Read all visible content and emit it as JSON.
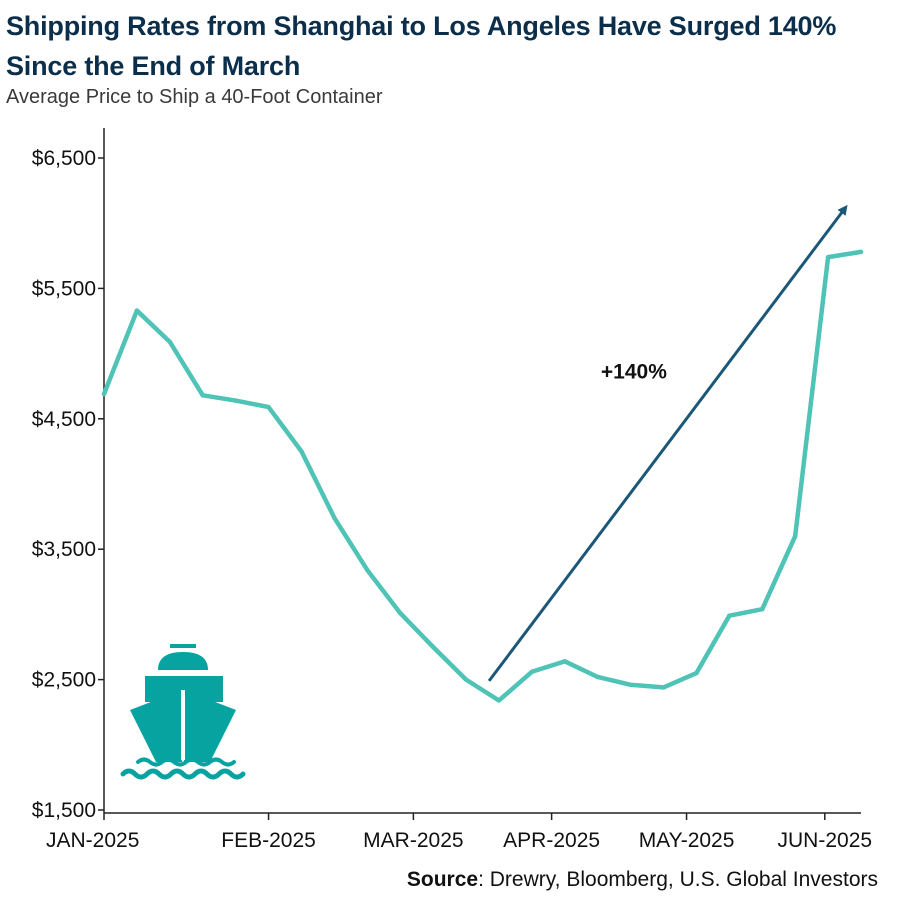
{
  "chart_data": {
    "type": "line",
    "title": "Shipping Rates from Shanghai to Los Angeles Have Surged 140% Since the End of March",
    "subtitle": "Average Price to Ship a 40-Foot Container",
    "xlabel": "",
    "ylabel": "",
    "ylim": [
      1500,
      6500
    ],
    "y_ticks": [
      1500,
      2500,
      3500,
      4500,
      5500,
      6500
    ],
    "y_tick_labels": [
      "$1,500",
      "$2,500",
      "$3,500",
      "$4,500",
      "$5,500",
      "$6,500"
    ],
    "x_range": [
      0,
      23
    ],
    "x_ticks": [
      0,
      5,
      9.4,
      13.6,
      17.7,
      21.9
    ],
    "x_tick_labels": [
      "JAN-2025",
      "FEB-2025",
      "MAR-2025",
      "APR-2025",
      "MAY-2025",
      "JUN-2025"
    ],
    "grid": false,
    "legend": "none",
    "series": [
      {
        "name": "Average Price to Ship a 40-Foot Container",
        "color": "#4fc3b6",
        "x": [
          0,
          1,
          2,
          3,
          4,
          5,
          6,
          7,
          8,
          9,
          10,
          11,
          12,
          13,
          14,
          15,
          16,
          17,
          18,
          19,
          20,
          21,
          22,
          23
        ],
        "values": [
          4690,
          5330,
          5090,
          4680,
          4640,
          4590,
          4250,
          3740,
          3340,
          3010,
          2750,
          2500,
          2340,
          2560,
          2640,
          2520,
          2460,
          2440,
          2550,
          2990,
          3040,
          3600,
          5740,
          5780
        ]
      }
    ],
    "annotations": [
      {
        "text": "+140%",
        "x": 16.1,
        "y": 4810,
        "arrow": {
          "color": "#1b5878",
          "from": [
            11.7,
            2490
          ],
          "to": [
            22.5,
            6110
          ]
        }
      }
    ],
    "icon": {
      "name": "cargo-ship-icon",
      "color": "#07a3a0"
    }
  },
  "source": {
    "label": "Source",
    "text": ": Drewry, Bloomberg, U.S. Global Investors"
  }
}
